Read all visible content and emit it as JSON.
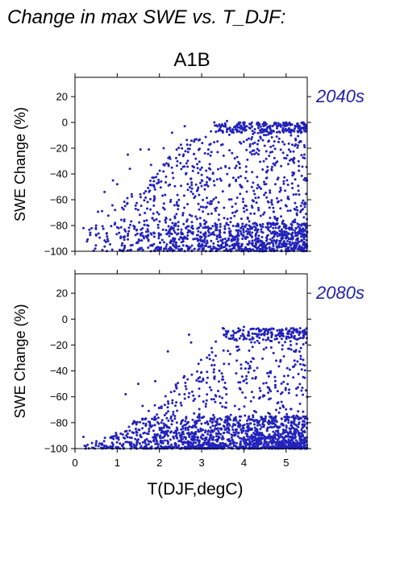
{
  "figure_title": "Change in max SWE vs. T_DJF:",
  "scenario_label": "A1B",
  "colors": {
    "points": "#2222bb",
    "period_label": "#2222aa"
  },
  "chart_data": [
    {
      "type": "scatter",
      "panel_label": "2040s",
      "ylabel": "SWE Change (%)",
      "xlabel": "",
      "xlim": [
        0,
        5.5
      ],
      "ylim": [
        -100,
        35
      ],
      "xticks": [
        0,
        1,
        2,
        3,
        4,
        5
      ],
      "yticks": [
        20,
        0,
        -20,
        -40,
        -60,
        -80,
        -100
      ],
      "ytick_labels": [
        "20",
        "0",
        "−20",
        "−40",
        "−60",
        "−80",
        "−100"
      ],
      "grid": false,
      "point_pattern": {
        "note": "many hundreds of dense points; boundary roughly rises from -85 at T=0.2 to 0 at T=3.3, dense cluster near -80 to -100 for T>3.3",
        "highlight_points": [
          {
            "x": 0.2,
            "y": -82
          },
          {
            "x": 0.5,
            "y": -80
          },
          {
            "x": 0.5,
            "y": -87
          },
          {
            "x": 0.7,
            "y": -54
          },
          {
            "x": 0.9,
            "y": -45
          },
          {
            "x": 1.0,
            "y": -48
          },
          {
            "x": 0.95,
            "y": -78
          },
          {
            "x": 1.25,
            "y": -25
          },
          {
            "x": 1.25,
            "y": -88
          },
          {
            "x": 1.3,
            "y": -36
          },
          {
            "x": 1.55,
            "y": -21
          },
          {
            "x": 1.75,
            "y": -21
          },
          {
            "x": 1.8,
            "y": -33
          },
          {
            "x": 2.1,
            "y": -20
          },
          {
            "x": 2.3,
            "y": -8
          },
          {
            "x": 2.6,
            "y": -3
          },
          {
            "x": 3.3,
            "y": 0
          },
          {
            "x": 3.6,
            "y": 1
          },
          {
            "x": 4.0,
            "y": 0
          },
          {
            "x": 4.5,
            "y": 0
          },
          {
            "x": 5.0,
            "y": 0
          },
          {
            "x": 5.4,
            "y": 0
          }
        ]
      }
    },
    {
      "type": "scatter",
      "panel_label": "2080s",
      "ylabel": "SWE Change (%)",
      "xlabel": "T(DJF,degC)",
      "xlim": [
        0,
        5.5
      ],
      "ylim": [
        -100,
        35
      ],
      "xticks": [
        0,
        1,
        2,
        3,
        4,
        5
      ],
      "xtick_labels": [
        "0",
        "1",
        "2",
        "3",
        "4",
        "5"
      ],
      "yticks": [
        20,
        0,
        -20,
        -40,
        -60,
        -80,
        -100
      ],
      "ytick_labels": [
        "20",
        "0",
        "−20",
        "−40",
        "−60",
        "−80",
        "−100"
      ],
      "grid": false,
      "point_pattern": {
        "note": "most points near -85 to -100; upper envelope rises from -97 at T=0.2 to -7 near T=3.5; dense band near -10 for T 3.5-5.5",
        "highlight_points": [
          {
            "x": 0.2,
            "y": -91
          },
          {
            "x": 0.3,
            "y": -97
          },
          {
            "x": 0.5,
            "y": -96
          },
          {
            "x": 0.65,
            "y": -97
          },
          {
            "x": 0.9,
            "y": -98
          },
          {
            "x": 1.2,
            "y": -58
          },
          {
            "x": 1.5,
            "y": -50
          },
          {
            "x": 1.6,
            "y": -67
          },
          {
            "x": 1.9,
            "y": -48
          },
          {
            "x": 2.2,
            "y": -25
          },
          {
            "x": 2.7,
            "y": -12
          },
          {
            "x": 2.75,
            "y": -18
          },
          {
            "x": 3.5,
            "y": -7
          },
          {
            "x": 4.0,
            "y": -6
          },
          {
            "x": 4.5,
            "y": -8
          },
          {
            "x": 5.0,
            "y": -8
          },
          {
            "x": 5.4,
            "y": -9
          }
        ]
      }
    }
  ]
}
